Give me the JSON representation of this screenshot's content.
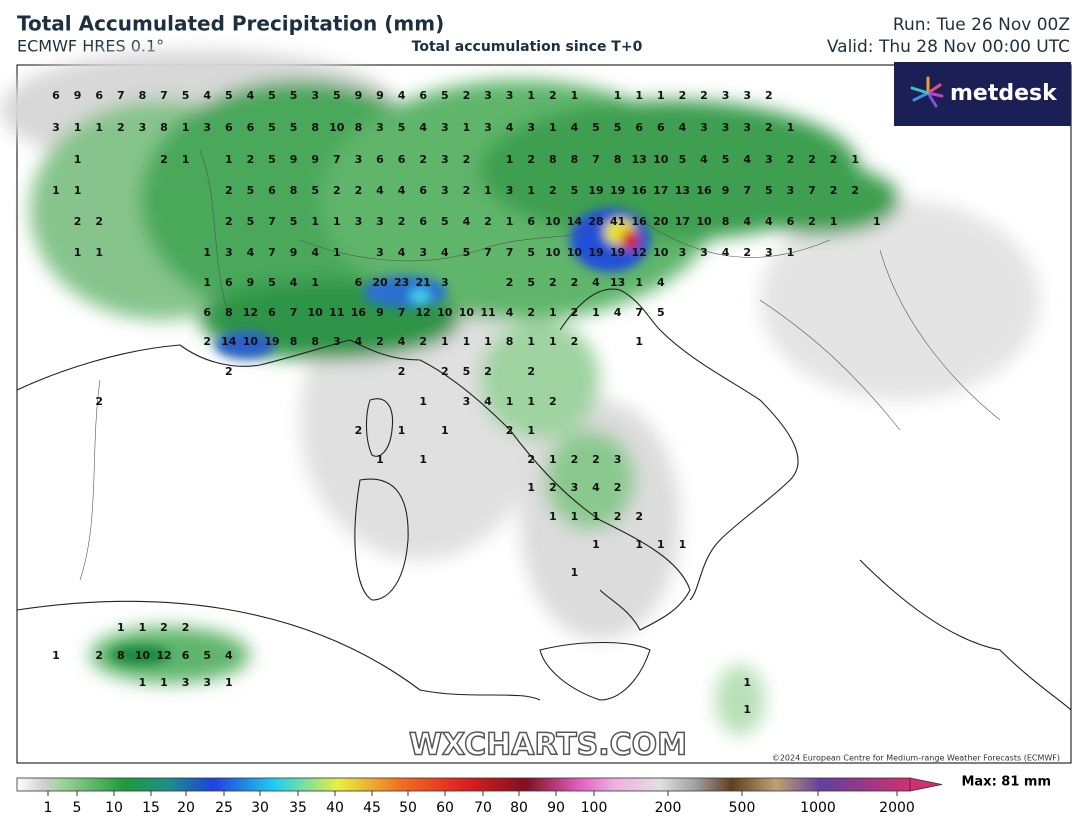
{
  "header": {
    "title": "Total Accumulated Precipitation (mm)",
    "model": "ECMWF HRES 0.1°",
    "subtitle": "Total accumulation since T+0",
    "run": "Run: Tue 26 Nov 00Z",
    "valid": "Valid: Thu 28 Nov 00:00 UTC"
  },
  "logo": "metdesk",
  "watermark": "WXCHARTS.COM",
  "copyright": "©2024 European Centre for Medium-range Weather Forecasts (ECMWF)",
  "grid": {
    "rows": [
      [
        6,
        9,
        6,
        7,
        8,
        7,
        5,
        4,
        5,
        4,
        5,
        5,
        3,
        5,
        9,
        9,
        4,
        6,
        5,
        2,
        3,
        3,
        1,
        2,
        1,
        null,
        1,
        1,
        1,
        2,
        2,
        3,
        3,
        2
      ],
      [
        3,
        1,
        1,
        2,
        3,
        8,
        1,
        3,
        6,
        6,
        5,
        5,
        8,
        10,
        8,
        3,
        5,
        4,
        3,
        1,
        3,
        4,
        3,
        1,
        4,
        5,
        5,
        6,
        6,
        4,
        3,
        3,
        3,
        2,
        1
      ],
      [
        null,
        1,
        null,
        null,
        null,
        2,
        1,
        null,
        1,
        2,
        5,
        9,
        9,
        7,
        3,
        6,
        6,
        2,
        3,
        2,
        null,
        1,
        2,
        8,
        8,
        7,
        8,
        13,
        10,
        5,
        4,
        5,
        4,
        3,
        2,
        2,
        2,
        1
      ],
      [
        1,
        1,
        null,
        null,
        null,
        null,
        null,
        null,
        2,
        5,
        6,
        8,
        5,
        2,
        2,
        4,
        4,
        6,
        3,
        2,
        1,
        3,
        1,
        2,
        5,
        19,
        19,
        16,
        17,
        13,
        16,
        9,
        7,
        5,
        3,
        7,
        2,
        2
      ],
      [
        null,
        2,
        2,
        null,
        null,
        null,
        null,
        null,
        2,
        5,
        7,
        5,
        1,
        1,
        3,
        3,
        2,
        6,
        5,
        4,
        2,
        1,
        6,
        10,
        14,
        28,
        41,
        16,
        20,
        17,
        10,
        8,
        4,
        4,
        6,
        2,
        1,
        null,
        1
      ],
      [
        null,
        1,
        1,
        null,
        null,
        null,
        null,
        1,
        3,
        4,
        7,
        9,
        4,
        1,
        null,
        3,
        4,
        3,
        4,
        5,
        7,
        7,
        5,
        10,
        10,
        19,
        19,
        12,
        10,
        3,
        3,
        4,
        2,
        3,
        1
      ],
      [
        null,
        null,
        null,
        null,
        null,
        null,
        null,
        1,
        6,
        9,
        5,
        4,
        1,
        null,
        6,
        20,
        23,
        21,
        3,
        null,
        null,
        2,
        5,
        2,
        2,
        4,
        13,
        1,
        4
      ],
      [
        null,
        null,
        null,
        null,
        null,
        null,
        null,
        6,
        8,
        12,
        6,
        7,
        10,
        11,
        16,
        9,
        7,
        12,
        10,
        10,
        11,
        4,
        2,
        1,
        2,
        1,
        4,
        7,
        5
      ],
      [
        null,
        null,
        null,
        null,
        null,
        null,
        null,
        2,
        14,
        10,
        19,
        8,
        8,
        3,
        4,
        2,
        4,
        2,
        1,
        1,
        1,
        8,
        1,
        1,
        2,
        null,
        null,
        1
      ],
      [
        null,
        null,
        null,
        null,
        null,
        null,
        null,
        null,
        2,
        null,
        null,
        null,
        null,
        null,
        null,
        null,
        2,
        null,
        2,
        5,
        2,
        null,
        2
      ],
      [
        null,
        null,
        2,
        null,
        null,
        null,
        null,
        null,
        null,
        null,
        null,
        null,
        null,
        null,
        null,
        null,
        null,
        1,
        null,
        3,
        4,
        1,
        1,
        2
      ],
      [
        null,
        null,
        null,
        null,
        null,
        null,
        null,
        null,
        null,
        null,
        null,
        null,
        null,
        null,
        2,
        null,
        1,
        null,
        1,
        null,
        null,
        2,
        1
      ],
      [
        null,
        null,
        null,
        null,
        null,
        null,
        null,
        null,
        null,
        null,
        null,
        null,
        null,
        null,
        null,
        1,
        null,
        1,
        null,
        null,
        null,
        null,
        2,
        1,
        2,
        2,
        3
      ],
      [
        null,
        null,
        null,
        null,
        null,
        null,
        null,
        null,
        null,
        null,
        null,
        null,
        null,
        null,
        null,
        null,
        null,
        null,
        null,
        null,
        null,
        null,
        1,
        2,
        3,
        4,
        2
      ],
      [
        null,
        null,
        null,
        null,
        null,
        null,
        null,
        null,
        null,
        null,
        null,
        null,
        null,
        null,
        null,
        null,
        null,
        null,
        null,
        null,
        null,
        null,
        null,
        1,
        1,
        1,
        2,
        2
      ],
      [
        null,
        null,
        null,
        null,
        null,
        null,
        null,
        null,
        null,
        null,
        null,
        null,
        null,
        null,
        null,
        null,
        null,
        null,
        null,
        null,
        null,
        null,
        null,
        null,
        null,
        1,
        null,
        1,
        1,
        1
      ],
      [
        null,
        null,
        null,
        null,
        null,
        null,
        null,
        null,
        null,
        null,
        null,
        null,
        null,
        null,
        null,
        null,
        null,
        null,
        null,
        null,
        null,
        null,
        null,
        null,
        1
      ],
      [
        null,
        null,
        null,
        1,
        1,
        2,
        2
      ],
      [
        1,
        null,
        2,
        8,
        10,
        12,
        6,
        5,
        4
      ],
      [
        null,
        null,
        null,
        null,
        1,
        1,
        3,
        3,
        1,
        null,
        null,
        null,
        null,
        null,
        null,
        null,
        null,
        null,
        null,
        null,
        null,
        null,
        null,
        null,
        null,
        null,
        null,
        null,
        null,
        null,
        null,
        null,
        1
      ],
      [
        null,
        null,
        null,
        null,
        null,
        null,
        null,
        null,
        null,
        null,
        null,
        null,
        null,
        null,
        null,
        null,
        null,
        null,
        null,
        null,
        null,
        null,
        null,
        null,
        null,
        null,
        null,
        null,
        null,
        null,
        null,
        null,
        1
      ]
    ]
  },
  "legend": {
    "ticks": [
      1,
      5,
      10,
      15,
      20,
      25,
      30,
      35,
      40,
      45,
      50,
      60,
      70,
      80,
      90,
      100,
      200,
      500,
      1000,
      2000
    ],
    "max": "Max: 81 mm"
  }
}
